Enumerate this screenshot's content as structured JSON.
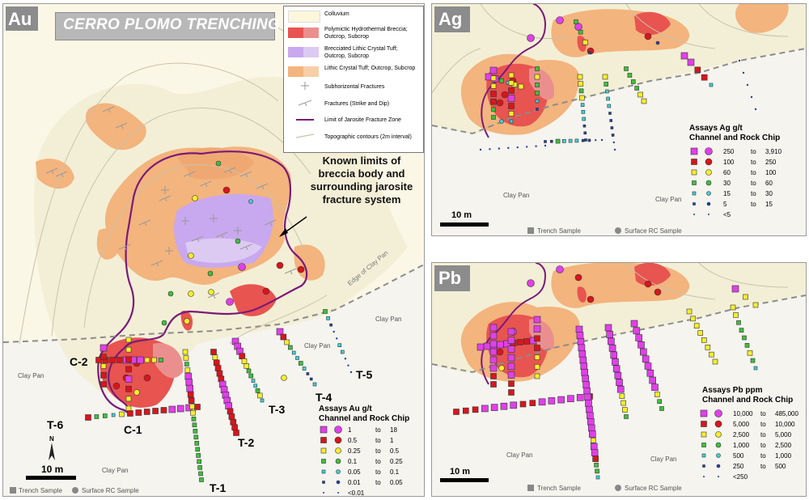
{
  "au": {
    "label": "Au",
    "title": "CERRO PLOMO TRENCHING",
    "legend": {
      "units": [
        "Colluvium",
        "Polymictic Hydrothermal Breccia; Outcrop, Subcrop",
        "Brecciated Lithic Crystal Tuff; Outcrop, Subcrop",
        "Lithic Crystal Tuff; Outcrop, Subcrop"
      ],
      "unit_colors": [
        "#fbf6dc",
        "#e85450",
        "#c8a8ee",
        "#f3b47e"
      ],
      "symbols": [
        "Subhorizontal Fractures",
        "Fractures (Strike and Dip)",
        "Limit of Jarosite Fracture Zone",
        "Topographic contours (2m interval)"
      ]
    },
    "annotation": [
      "Known limits of",
      "breccia body and",
      "surrounding jarosite",
      "fracture system"
    ],
    "edge_label": "Edge of Clay Pan",
    "clay_pan": [
      "Clay Pan",
      "Clay Pan",
      "Clay Pan",
      "Clay Pan"
    ],
    "trenches": [
      "C-2",
      "C-1",
      "T-6",
      "T-1",
      "T-2",
      "T-3",
      "T-4",
      "T-5"
    ],
    "assay_title": [
      "Assays Au g/t",
      "Channel and Rock Chip"
    ],
    "assay_rows": [
      [
        "1",
        "to",
        "18"
      ],
      [
        "0.5",
        "to",
        "1"
      ],
      [
        "0.25",
        "to",
        "0.5"
      ],
      [
        "0.1",
        "to",
        "0.25"
      ],
      [
        "0.05",
        "to",
        "0.1"
      ],
      [
        "0.01",
        "to",
        "0.05"
      ],
      [
        "<0.01",
        "",
        ""
      ]
    ],
    "scale": "10 m",
    "north": "N",
    "footer": [
      "Trench Sample",
      "Surface RC Sample"
    ]
  },
  "ag": {
    "label": "Ag",
    "clay_pan": [
      "Clay Pan",
      "Clay Pan"
    ],
    "assay_title": [
      "Assays Ag g/t",
      "Channel and Rock Chip"
    ],
    "assay_rows": [
      [
        "250",
        "to",
        "3,910"
      ],
      [
        "100",
        "to",
        "250"
      ],
      [
        "60",
        "to",
        "100"
      ],
      [
        "30",
        "to",
        "60"
      ],
      [
        "15",
        "to",
        "30"
      ],
      [
        "5",
        "to",
        "15"
      ],
      [
        "<5",
        "",
        ""
      ]
    ],
    "scale": "10 m",
    "footer": [
      "Trench Sample",
      "Surface RC Sample"
    ]
  },
  "pb": {
    "label": "Pb",
    "clay_pan": [
      "Clay Pan",
      "Clay Pan"
    ],
    "assay_title": [
      "Assays Pb ppm",
      "Channel and Rock Chip"
    ],
    "assay_rows": [
      [
        "10,000",
        "to",
        "485,000"
      ],
      [
        "5,000",
        "to",
        "10,000"
      ],
      [
        "2,500",
        "to",
        "5,000"
      ],
      [
        "1,000",
        "to",
        "2,500"
      ],
      [
        "500",
        "to",
        "1,000"
      ],
      [
        "250",
        "to",
        "500"
      ],
      [
        "<250",
        "",
        ""
      ]
    ],
    "scale": "10 m",
    "footer": [
      "Trench Sample",
      "Surface RC Sample"
    ]
  },
  "class_colors": [
    "#e040e8",
    "#d8161c",
    "#f7ee2a",
    "#3cc23a",
    "#3ad4dc",
    "#1f3fae",
    "#1f3fae"
  ]
}
